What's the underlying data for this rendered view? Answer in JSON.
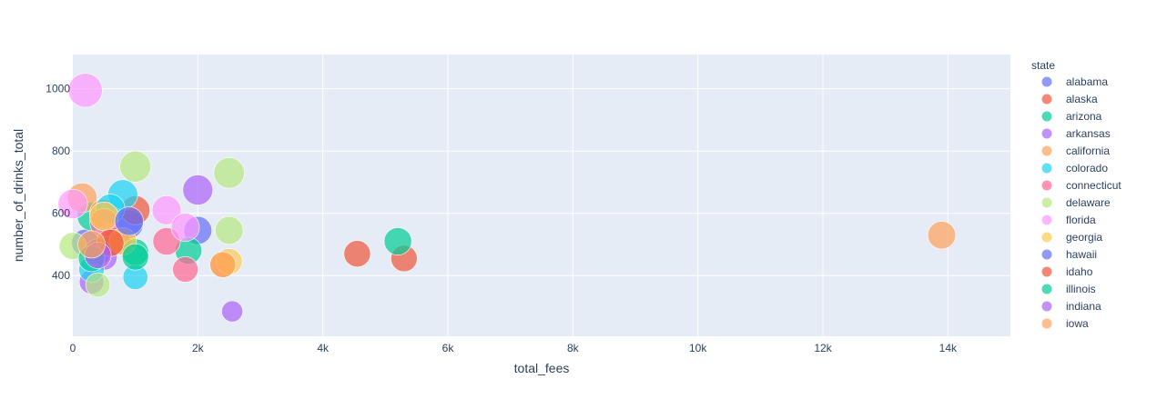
{
  "chart_data": {
    "type": "scatter",
    "xlabel": "total_fees",
    "ylabel": "number_of_drinks_total",
    "xlim": [
      0,
      15000
    ],
    "ylim": [
      205,
      1110
    ],
    "x_ticks": [
      0,
      2000,
      4000,
      6000,
      8000,
      10000,
      12000,
      14000
    ],
    "x_tick_labels": [
      "0",
      "2k",
      "4k",
      "6k",
      "8k",
      "10k",
      "12k",
      "14k"
    ],
    "y_ticks": [
      400,
      600,
      800,
      1000
    ],
    "y_tick_labels": [
      "400",
      "600",
      "800",
      "1000"
    ],
    "grid": true,
    "bubble": true,
    "legend_title": "state",
    "legend_position": "right",
    "series": [
      {
        "name": "alabama",
        "color": "#636efa",
        "points": [
          [
            200,
            505
          ],
          [
            900,
            565
          ],
          [
            2000,
            545
          ]
        ]
      },
      {
        "name": "alaska",
        "color": "#EF553B",
        "points": [
          [
            1000,
            610
          ],
          [
            700,
            510
          ],
          [
            4550,
            470
          ],
          [
            5300,
            455
          ]
        ]
      },
      {
        "name": "arizona",
        "color": "#00cc96",
        "points": [
          [
            300,
            590
          ],
          [
            1000,
            475
          ],
          [
            1850,
            480
          ],
          [
            5200,
            510
          ]
        ]
      },
      {
        "name": "arkansas",
        "color": "#ab63fa",
        "points": [
          [
            2000,
            675
          ],
          [
            300,
            380
          ],
          [
            500,
            460
          ],
          [
            2550,
            285
          ]
        ]
      },
      {
        "name": "california",
        "color": "#FFA15A",
        "points": [
          [
            150,
            650
          ],
          [
            500,
            600
          ],
          [
            2400,
            435
          ],
          [
            13900,
            530
          ]
        ]
      },
      {
        "name": "colorado",
        "color": "#19d3f3",
        "points": [
          [
            800,
            660
          ],
          [
            300,
            420
          ],
          [
            1000,
            395
          ],
          [
            600,
            615
          ]
        ]
      },
      {
        "name": "connecticut",
        "color": "#FF6692",
        "points": [
          [
            1500,
            510
          ],
          [
            1800,
            420
          ],
          [
            500,
            570
          ]
        ]
      },
      {
        "name": "delaware",
        "color": "#B6E880",
        "points": [
          [
            1000,
            750
          ],
          [
            2500,
            730
          ],
          [
            2500,
            545
          ],
          [
            400,
            370
          ],
          [
            0,
            495
          ]
        ]
      },
      {
        "name": "florida",
        "color": "#FF97FF",
        "points": [
          [
            200,
            995
          ],
          [
            1500,
            610
          ],
          [
            0,
            630
          ],
          [
            1800,
            555
          ]
        ]
      },
      {
        "name": "georgia",
        "color": "#FECB52",
        "points": [
          [
            2500,
            445
          ],
          [
            800,
            510
          ],
          [
            500,
            590
          ]
        ]
      },
      {
        "name": "hawaii",
        "color": "#636efa",
        "points": [
          [
            900,
            575
          ],
          [
            400,
            475
          ]
        ]
      },
      {
        "name": "idaho",
        "color": "#EF553B",
        "points": [
          [
            600,
            505
          ]
        ]
      },
      {
        "name": "illinois",
        "color": "#00cc96",
        "points": [
          [
            1000,
            460
          ],
          [
            300,
            455
          ]
        ]
      },
      {
        "name": "indiana",
        "color": "#ab63fa",
        "points": [
          [
            400,
            465
          ]
        ]
      },
      {
        "name": "iowa",
        "color": "#FFA15A",
        "points": [
          [
            2400,
            435
          ],
          [
            300,
            500
          ]
        ]
      }
    ]
  }
}
